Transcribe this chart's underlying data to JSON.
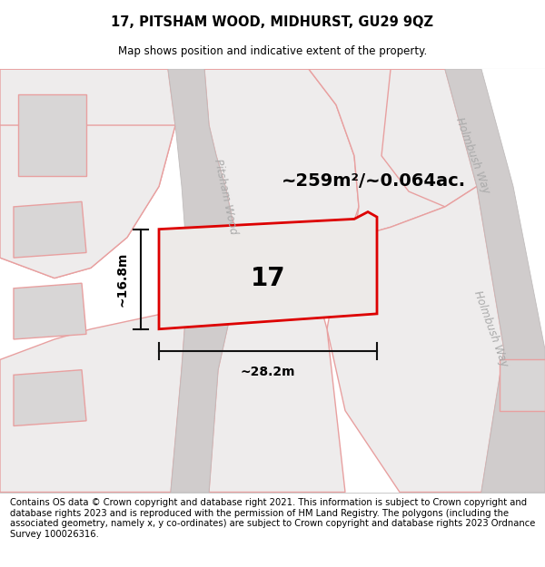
{
  "title": "17, PITSHAM WOOD, MIDHURST, GU29 9QZ",
  "subtitle": "Map shows position and indicative extent of the property.",
  "footer": "Contains OS data © Crown copyright and database right 2021. This information is subject to Crown copyright and database rights 2023 and is reproduced with the permission of HM Land Registry. The polygons (including the associated geometry, namely x, y co-ordinates) are subject to Crown copyright and database rights 2023 Ordnance Survey 100026316.",
  "area_label": "~259m²/~0.064ac.",
  "width_label": "~28.2m",
  "height_label": "~16.8m",
  "house_number": "17",
  "bg_white": "#ffffff",
  "map_bg": "#f7f5f5",
  "road_fill": "#e8e5e5",
  "block_fill": "#e2e0e0",
  "block_fill2": "#eeecec",
  "building_fill": "#d8d6d6",
  "plot_outline": "#e8a0a0",
  "road_stripe": "#d0cccc",
  "road_edge": "#c0bcbc",
  "prop_fill": "#edeae8",
  "prop_red": "#dd0000",
  "street_color": "#aaaaaa",
  "arrow_color": "#111111",
  "street_name_1": "Pitsham Wood",
  "street_name_2": "Holmbush Way",
  "title_fontsize": 10.5,
  "subtitle_fontsize": 8.5,
  "footer_fontsize": 7.2,
  "area_fontsize": 14,
  "dim_fontsize": 10,
  "num_fontsize": 20
}
